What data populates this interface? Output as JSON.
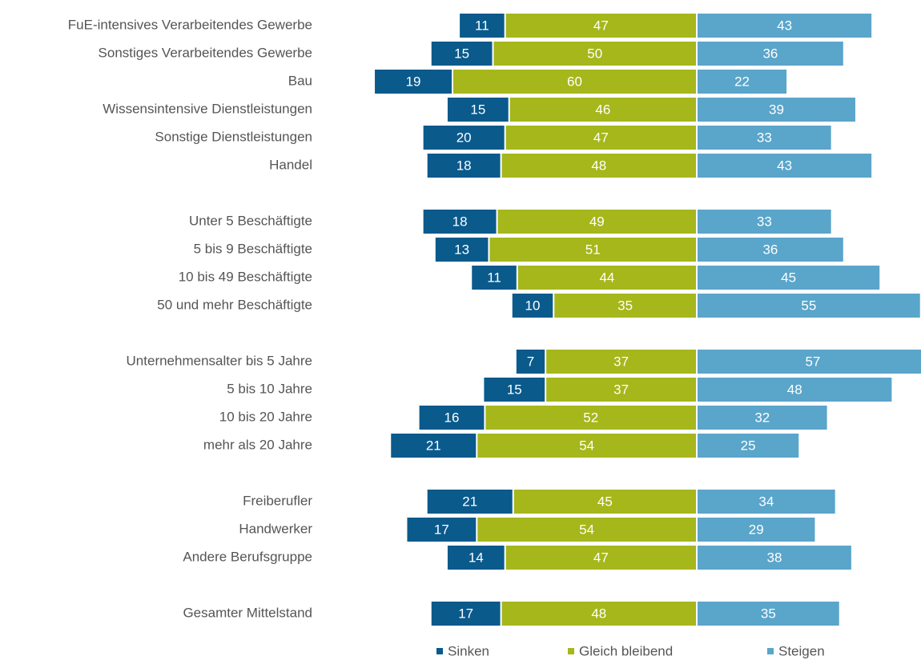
{
  "chart_data": {
    "type": "diverging-bar",
    "categories": [
      "FuE-intensives Verarbeitendes Gewerbe",
      "Sonstiges Verarbeitendes Gewerbe",
      "Bau",
      "Wissensintensive Dienstleistungen",
      "Sonstige Dienstleistungen",
      "Handel",
      null,
      "Unter 5 Beschäftigte",
      "5 bis 9 Beschäftigte",
      "10 bis 49 Beschäftigte",
      "50 und mehr Beschäftigte",
      null,
      "Unternehmensalter bis 5 Jahre",
      "5 bis 10 Jahre",
      "10 bis 20 Jahre",
      "mehr als 20 Jahre",
      null,
      "Freiberufler",
      "Handwerker",
      "Andere Berufsgruppe",
      null,
      "Gesamter Mittelstand"
    ],
    "series": [
      {
        "name": "Sinken",
        "color": "#0a5a8c",
        "values": [
          11,
          15,
          19,
          15,
          20,
          18,
          null,
          18,
          13,
          11,
          10,
          null,
          7,
          15,
          16,
          21,
          null,
          21,
          17,
          14,
          null,
          17
        ]
      },
      {
        "name": "Gleich bleibend",
        "color": "#a5b71b",
        "values": [
          47,
          50,
          60,
          46,
          47,
          48,
          null,
          49,
          51,
          44,
          35,
          null,
          37,
          37,
          52,
          54,
          null,
          45,
          54,
          47,
          null,
          48
        ]
      },
      {
        "name": "Steigen",
        "color": "#5aa5ca",
        "values": [
          43,
          36,
          22,
          39,
          33,
          43,
          null,
          33,
          36,
          45,
          55,
          null,
          57,
          48,
          32,
          25,
          null,
          34,
          29,
          38,
          null,
          35
        ]
      }
    ],
    "legend": "bottom"
  }
}
